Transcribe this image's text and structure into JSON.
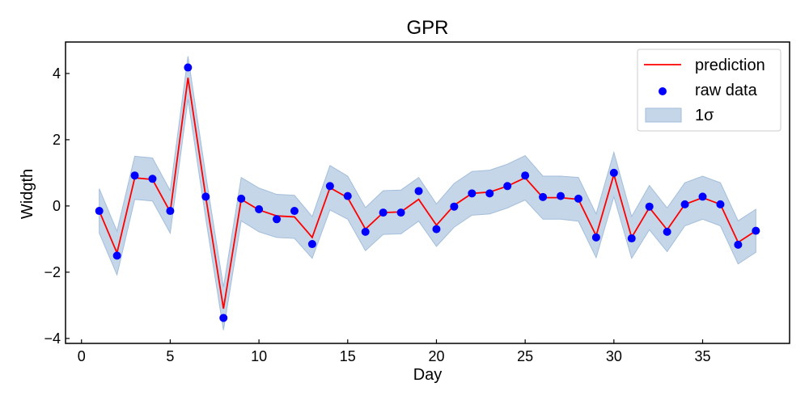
{
  "chart_data": {
    "type": "line",
    "title": "GPR",
    "xlabel": "Day",
    "ylabel": "Widgth",
    "xlim": [
      -0.9,
      39.9
    ],
    "ylim": [
      -4.15,
      4.95
    ],
    "x_ticks": [
      0,
      5,
      10,
      15,
      20,
      25,
      30,
      35
    ],
    "y_ticks": [
      -4,
      -2,
      0,
      2,
      4
    ],
    "x_tick_labels": [
      "0",
      "5",
      "10",
      "15",
      "20",
      "25",
      "30",
      "35"
    ],
    "y_tick_labels": [
      "−4",
      "−2",
      "0",
      "2",
      "4"
    ],
    "grid": false,
    "legend_position": "top-right",
    "x": [
      1,
      2,
      3,
      4,
      5,
      6,
      7,
      8,
      9,
      10,
      11,
      12,
      13,
      14,
      15,
      16,
      17,
      18,
      19,
      20,
      21,
      22,
      23,
      24,
      25,
      26,
      27,
      28,
      29,
      30,
      31,
      32,
      33,
      34,
      35,
      36,
      37,
      38
    ],
    "series": [
      {
        "name": "prediction",
        "kind": "line",
        "color": "#ff0000",
        "values": [
          -0.15,
          -1.42,
          0.85,
          0.8,
          -0.18,
          3.87,
          0.28,
          -3.1,
          0.2,
          -0.12,
          -0.3,
          -0.33,
          -0.95,
          0.55,
          0.25,
          -0.7,
          -0.2,
          -0.18,
          0.2,
          -0.58,
          0.02,
          0.38,
          0.42,
          0.6,
          0.85,
          0.25,
          0.25,
          0.2,
          -0.9,
          0.95,
          -0.95,
          -0.05,
          -0.72,
          0.05,
          0.25,
          0.05,
          -1.1,
          -0.75
        ]
      },
      {
        "name": "raw data",
        "kind": "scatter",
        "color": "#0000ff",
        "values": [
          -0.15,
          -1.5,
          0.92,
          0.82,
          -0.15,
          4.18,
          0.28,
          -3.38,
          0.22,
          -0.1,
          -0.4,
          -0.15,
          -1.15,
          0.6,
          0.3,
          -0.78,
          -0.2,
          -0.2,
          0.45,
          -0.7,
          -0.02,
          0.38,
          0.38,
          0.6,
          0.92,
          0.27,
          0.3,
          0.22,
          -0.95,
          1.0,
          -0.98,
          -0.02,
          -0.78,
          0.05,
          0.28,
          0.05,
          -1.17,
          -0.75
        ]
      },
      {
        "name": "1σ",
        "kind": "band",
        "color": "#b0c8e0",
        "lower": [
          -0.82,
          -2.08,
          0.2,
          0.15,
          -0.82,
          3.22,
          -0.38,
          -3.75,
          -0.45,
          -0.78,
          -0.95,
          -0.98,
          -1.58,
          -0.12,
          -0.4,
          -1.35,
          -0.86,
          -0.84,
          -0.46,
          -1.22,
          -0.64,
          -0.28,
          -0.24,
          -0.06,
          0.18,
          -0.4,
          -0.4,
          -0.46,
          -1.56,
          0.28,
          -1.58,
          -0.72,
          -1.38,
          -0.6,
          -0.4,
          -0.6,
          -1.75,
          -1.4
        ],
        "upper": [
          0.52,
          -0.76,
          1.5,
          1.45,
          0.46,
          4.52,
          0.94,
          -2.45,
          0.86,
          0.54,
          0.35,
          0.32,
          -0.32,
          1.22,
          0.9,
          -0.05,
          0.46,
          0.48,
          0.86,
          0.06,
          0.68,
          1.04,
          1.08,
          1.26,
          1.52,
          0.9,
          0.9,
          0.86,
          -0.24,
          1.62,
          -0.32,
          0.62,
          -0.06,
          0.7,
          0.9,
          0.7,
          -0.45,
          -0.1
        ]
      }
    ]
  }
}
